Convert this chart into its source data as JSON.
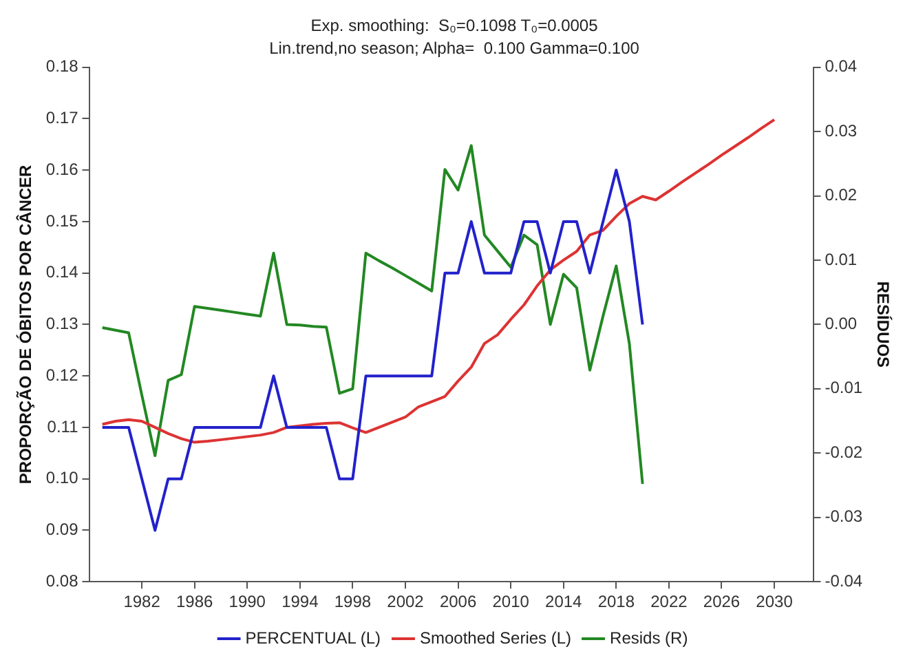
{
  "chart_data": {
    "type": "line",
    "title": "Exp. smoothing:  S₀=0.1098 T₀=0.0005",
    "subtitle": "Lin.trend,no season; Alpha=  0.100 Gamma=0.100",
    "ylabel": "PROPORÇÃO DE ÓBITOS POR CÂNCER",
    "y2label": "RESÍDUOS",
    "xlim": [
      1978,
      2033
    ],
    "xticks": [
      1982,
      1986,
      1990,
      1994,
      1998,
      2002,
      2006,
      2010,
      2014,
      2018,
      2022,
      2026,
      2030
    ],
    "ylim": [
      0.08,
      0.18
    ],
    "yticks": [
      0.08,
      0.09,
      {
        "value": 0.1,
        "label": "0.10"
      },
      0.11,
      0.12,
      0.13,
      0.14,
      0.15,
      0.16,
      0.17,
      0.18
    ],
    "y2lim": [
      -0.04,
      0.04
    ],
    "y2ticks": [
      -0.04,
      -0.03,
      -0.02,
      -0.01,
      {
        "value": 0,
        "label": "0.00"
      },
      0.01,
      0.02,
      0.03,
      0.04
    ],
    "grid": false,
    "legend": "bottom",
    "marker": "none",
    "line_style": "solid",
    "series": [
      {
        "name": "PERCENTUAL (L)",
        "color": "#2222cc",
        "x": [
          1979,
          1980,
          1981,
          1982,
          1983,
          1984,
          1985,
          1986,
          1987,
          1988,
          1989,
          1990,
          1991,
          1992,
          1993,
          1994,
          1995,
          1996,
          1997,
          1998,
          1999,
          2000,
          2001,
          2002,
          2003,
          2004,
          2005,
          2006,
          2007,
          2008,
          2009,
          2010,
          2011,
          2012,
          2013,
          2014,
          2015,
          2016,
          2017,
          2018,
          2019,
          2020
        ],
        "values": [
          0.11,
          0.11,
          0.11,
          0.1,
          0.09,
          0.1,
          0.1,
          0.11,
          0.11,
          0.11,
          0.11,
          0.11,
          0.11,
          0.12,
          0.11,
          0.11,
          0.11,
          0.11,
          0.1,
          0.1,
          0.12,
          0.12,
          0.12,
          0.12,
          0.12,
          0.12,
          0.14,
          0.14,
          0.15,
          0.14,
          0.14,
          0.14,
          0.15,
          0.15,
          0.14,
          0.15,
          0.15,
          0.14,
          0.15,
          0.16,
          0.15,
          0.13
        ]
      },
      {
        "name": "Smoothed Series (L)",
        "color": "#dd3333",
        "x": [
          1979,
          1980,
          1981,
          1982,
          1983,
          1984,
          1985,
          1986,
          1987,
          1988,
          1989,
          1990,
          1991,
          1992,
          1993,
          1994,
          1995,
          1996,
          1997,
          1998,
          1999,
          2000,
          2001,
          2002,
          2003,
          2004,
          2005,
          2006,
          2007,
          2008,
          2009,
          2010,
          2011,
          2012,
          2013,
          2014,
          2015,
          2016,
          2017,
          2018,
          2019,
          2020,
          2021,
          2022,
          2023,
          2024,
          2025,
          2026,
          2027,
          2028,
          2029,
          2030
        ],
        "values": [
          0.1106,
          0.1112,
          0.1115,
          0.1112,
          0.11,
          0.1088,
          0.1078,
          0.1071,
          0.1073,
          0.1076,
          0.1079,
          0.1082,
          0.1085,
          0.109,
          0.11,
          0.1103,
          0.1106,
          0.1108,
          0.1109,
          0.1099,
          0.109,
          0.11,
          0.111,
          0.112,
          0.114,
          0.115,
          0.116,
          0.119,
          0.1217,
          0.1263,
          0.128,
          0.131,
          0.1338,
          0.1375,
          0.1406,
          0.1425,
          0.1442,
          0.1474,
          0.1483,
          0.151,
          0.1535,
          0.1549,
          0.1542,
          0.1559,
          0.1577,
          0.1594,
          0.1611,
          0.1629,
          0.1646,
          0.1663,
          0.1681,
          0.1698
        ]
      },
      {
        "name": "Resids (R)",
        "color": "#228822",
        "axis": "y2",
        "x": [
          1979,
          1980,
          1981,
          1982,
          1983,
          1984,
          1985,
          1986,
          1987,
          1988,
          1989,
          1990,
          1991,
          1992,
          1993,
          1994,
          1995,
          1996,
          1997,
          1998,
          1999,
          2000,
          2001,
          2002,
          2003,
          2004,
          2005,
          2006,
          2007,
          2008,
          2009,
          2010,
          2011,
          2012,
          2013,
          2014,
          2015,
          2016,
          2017,
          2018,
          2019,
          2020
        ],
        "values": [
          -0.0005,
          -0.0009,
          -0.0013,
          -0.011,
          -0.0204,
          -0.0087,
          -0.0078,
          0.0028,
          0.0025,
          0.0022,
          0.0019,
          0.0016,
          0.0013,
          0.0111,
          0.0,
          -0.0001,
          -0.0003,
          -0.0004,
          -0.0107,
          -0.01,
          0.0111,
          0.0099,
          0.0088,
          0.0076,
          0.0064,
          0.0052,
          0.0241,
          0.0209,
          0.0278,
          0.0139,
          0.0114,
          0.0089,
          0.0139,
          0.0124,
          0.0,
          0.0078,
          0.0057,
          -0.0071,
          0.0013,
          0.0091,
          -0.003,
          -0.0248
        ]
      }
    ]
  }
}
